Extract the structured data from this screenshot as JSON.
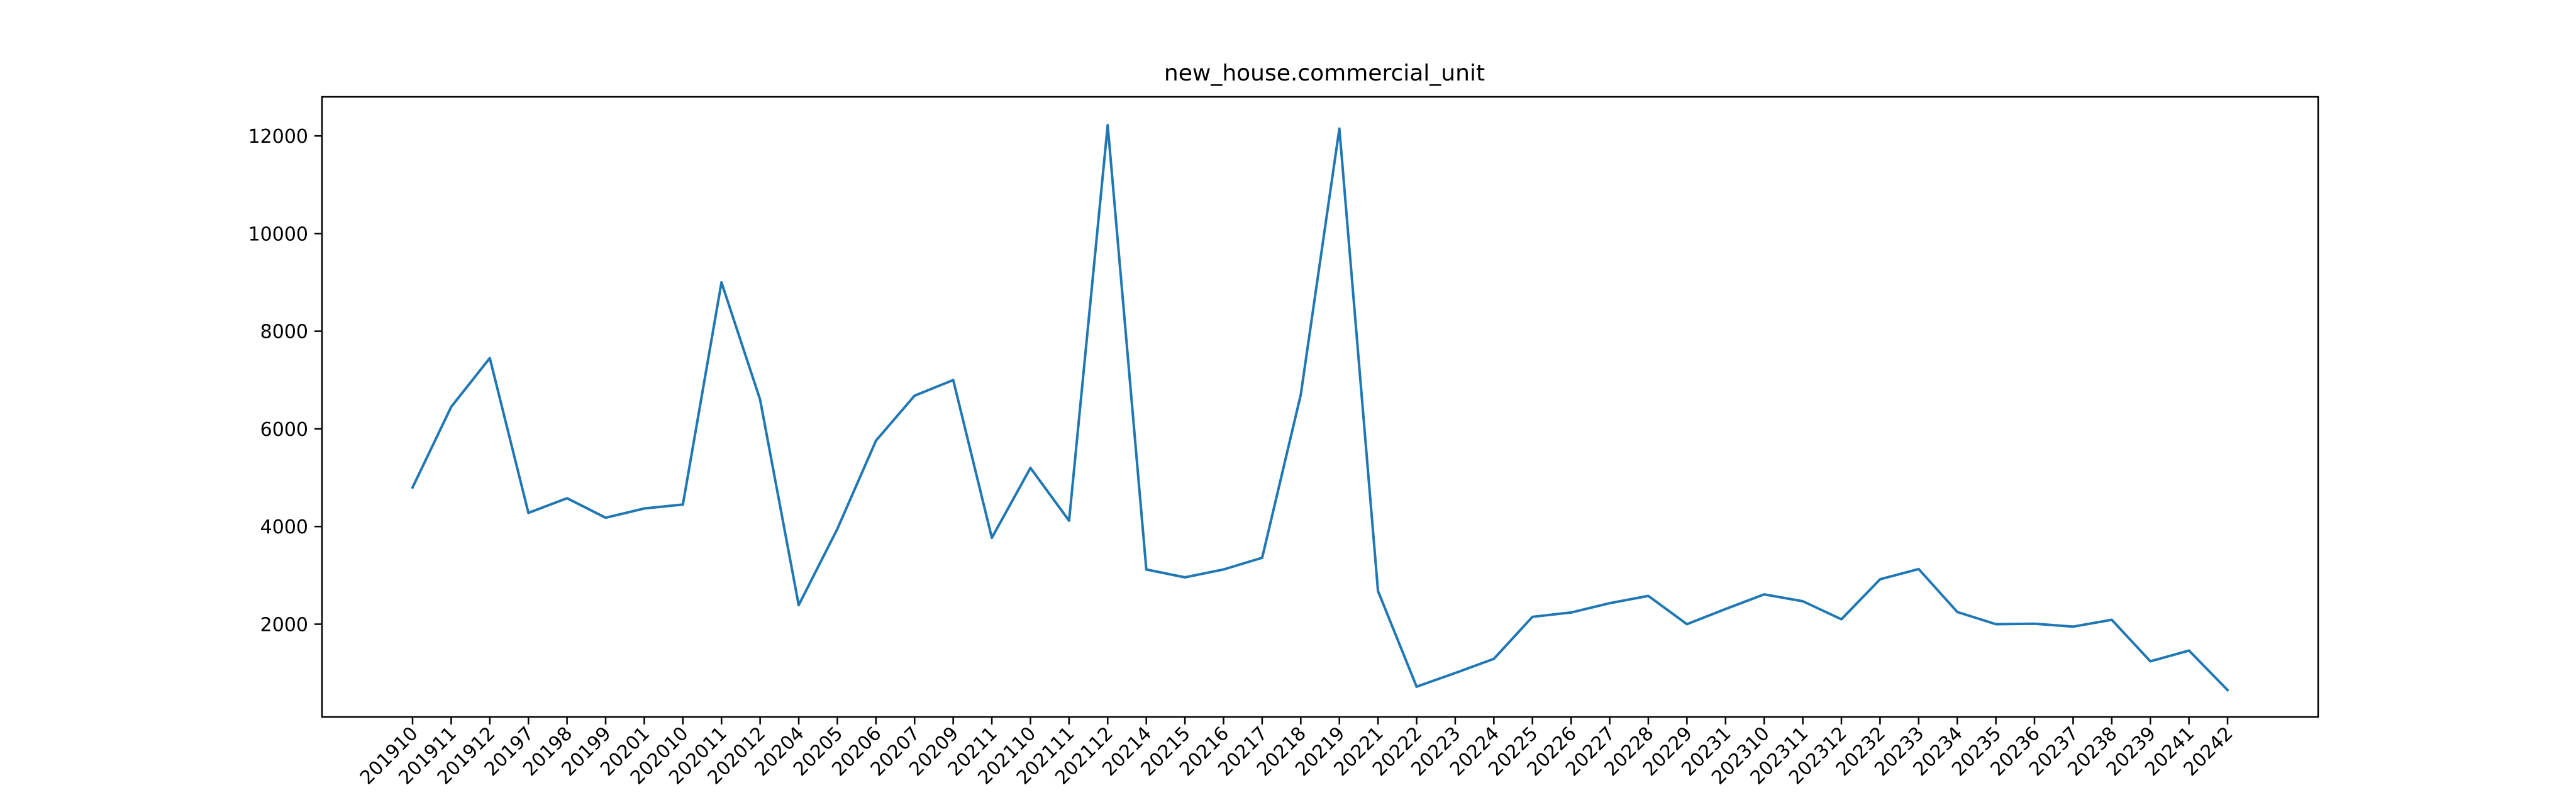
{
  "chart_data": {
    "type": "line",
    "title": "new_house.commercial_unit",
    "xlabel": "",
    "ylabel": "",
    "categories": [
      "201910",
      "201911",
      "201912",
      "20197",
      "20198",
      "20199",
      "20201",
      "202010",
      "202011",
      "202012",
      "20204",
      "20205",
      "20206",
      "20207",
      "20209",
      "20211",
      "202110",
      "202111",
      "202112",
      "20214",
      "20215",
      "20216",
      "20217",
      "20218",
      "20219",
      "20221",
      "20222",
      "20223",
      "20224",
      "20225",
      "20226",
      "20227",
      "20228",
      "20229",
      "20231",
      "202310",
      "202311",
      "202312",
      "20232",
      "20233",
      "20234",
      "20235",
      "20236",
      "20237",
      "20238",
      "20239",
      "20241",
      "20242"
    ],
    "series": [
      {
        "values": [
          4800,
          6450,
          7450,
          4280,
          4580,
          4180,
          4370,
          4450,
          9000,
          6600,
          2390,
          3950,
          5760,
          6680,
          7000,
          3770,
          5200,
          4120,
          12220,
          3120,
          2960,
          3120,
          3360,
          6700,
          12150,
          2680,
          720,
          1000,
          1290,
          2150,
          2240,
          2430,
          2580,
          2000,
          2310,
          2610,
          2470,
          2100,
          2920,
          3130,
          2250,
          2000,
          2010,
          1950,
          2090,
          1240,
          1460,
          650
        ],
        "color": "#1f77b4"
      }
    ],
    "ylim": [
      100,
      12800
    ],
    "yticks": [
      2000,
      4000,
      6000,
      8000,
      10000,
      12000
    ],
    "grid": false,
    "legend": "none"
  }
}
